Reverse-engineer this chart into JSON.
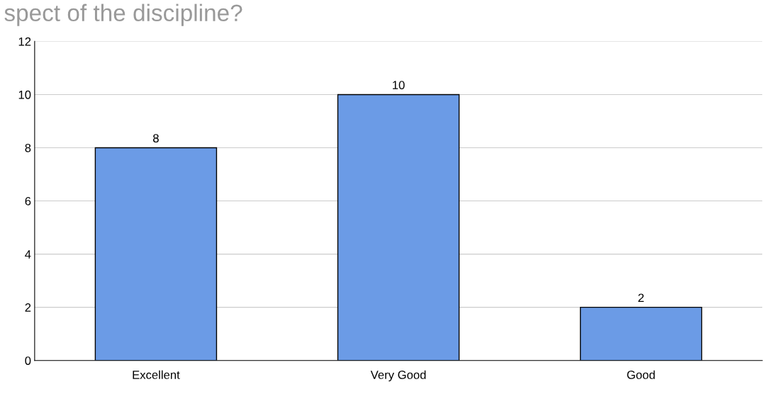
{
  "chart_data": {
    "type": "bar",
    "title": "spect of the discipline?",
    "categories": [
      "Excellent",
      "Very Good",
      "Good"
    ],
    "values": [
      8,
      10,
      2
    ],
    "color": "#6b9be6",
    "ylim": [
      0,
      12
    ],
    "yticks": [
      0,
      2,
      4,
      6,
      8,
      10,
      12
    ],
    "grid": "y",
    "data_labels": true
  }
}
